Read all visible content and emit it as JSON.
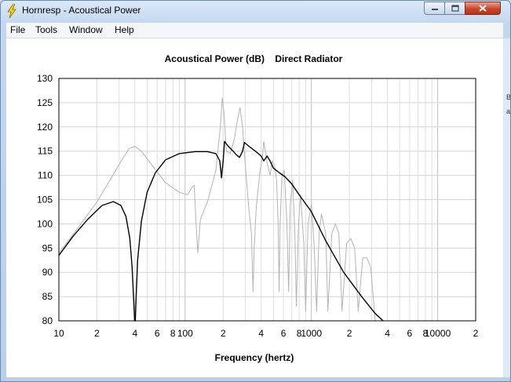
{
  "window": {
    "title": "Hornresp - Acoustical Power"
  },
  "menu": [
    "File",
    "Tools",
    "Window",
    "Help"
  ],
  "chart_data": {
    "type": "line",
    "title": "Acoustical Power (dB)    Direct Radiator",
    "xlabel": "Frequency (hertz)",
    "ylabel": "",
    "x_scale": "log",
    "xlim": [
      10,
      20000
    ],
    "ylim": [
      80,
      130
    ],
    "y_ticks": [
      80,
      85,
      90,
      95,
      100,
      105,
      110,
      115,
      120,
      125,
      130
    ],
    "y_tick_labels": [
      "80",
      "85",
      "90",
      "95",
      "100",
      "105",
      "110",
      "115",
      "120",
      "125",
      "130"
    ],
    "x_ticks": [
      10,
      20,
      40,
      60,
      80,
      100,
      200,
      400,
      600,
      800,
      1000,
      2000,
      4000,
      6000,
      8000,
      10000,
      20000
    ],
    "x_tick_labels": [
      "10",
      "2",
      "4",
      "6",
      "8",
      "100",
      "2",
      "4",
      "6",
      "8",
      "1000",
      "2",
      "4",
      "6",
      "8",
      "10000",
      "2"
    ],
    "grid": true,
    "series": [
      {
        "color": "#000000",
        "points": [
          [
            10,
            93.5
          ],
          [
            13,
            97.5
          ],
          [
            17,
            101
          ],
          [
            22,
            103.8
          ],
          [
            27,
            104.6
          ],
          [
            31,
            103.8
          ],
          [
            34,
            101.5
          ],
          [
            36.5,
            97
          ],
          [
            38,
            91
          ],
          [
            39.2,
            84
          ],
          [
            39.8,
            80
          ],
          [
            40.3,
            80
          ],
          [
            40.8,
            84
          ],
          [
            42,
            92.5
          ],
          [
            45,
            100.5
          ],
          [
            50,
            106.5
          ],
          [
            58,
            110.5
          ],
          [
            70,
            113.2
          ],
          [
            90,
            114.5
          ],
          [
            120,
            114.9
          ],
          [
            150,
            114.9
          ],
          [
            175,
            114.5
          ],
          [
            188,
            113
          ],
          [
            194,
            109.5
          ],
          [
            200,
            113
          ],
          [
            205,
            117
          ],
          [
            220,
            116
          ],
          [
            240,
            115
          ],
          [
            255,
            114.2
          ],
          [
            270,
            113.7
          ],
          [
            285,
            115
          ],
          [
            295,
            116.8
          ],
          [
            320,
            116
          ],
          [
            360,
            115
          ],
          [
            400,
            114
          ],
          [
            420,
            113
          ],
          [
            445,
            114
          ],
          [
            470,
            113
          ],
          [
            500,
            111.5
          ],
          [
            560,
            110.5
          ],
          [
            620,
            109.7
          ],
          [
            700,
            108.2
          ],
          [
            800,
            106
          ],
          [
            1000,
            102.5
          ],
          [
            1300,
            96.5
          ],
          [
            1800,
            90
          ],
          [
            2500,
            85
          ],
          [
            3200,
            81.5
          ],
          [
            3700,
            80
          ]
        ]
      },
      {
        "color": "#b4b4b4",
        "points": [
          [
            10,
            94
          ],
          [
            14,
            99
          ],
          [
            20,
            104.5
          ],
          [
            26,
            109.5
          ],
          [
            32,
            113.5
          ],
          [
            36,
            115.5
          ],
          [
            40,
            116
          ],
          [
            45,
            115
          ],
          [
            55,
            112
          ],
          [
            70,
            108.5
          ],
          [
            90,
            106.5
          ],
          [
            105,
            106
          ],
          [
            113,
            107.5
          ],
          [
            118,
            108
          ],
          [
            122,
            100
          ],
          [
            126,
            94
          ],
          [
            132,
            101
          ],
          [
            150,
            104.5
          ],
          [
            175,
            111
          ],
          [
            190,
            120
          ],
          [
            197,
            126
          ],
          [
            203,
            123
          ],
          [
            212,
            115
          ],
          [
            228,
            114.5
          ],
          [
            245,
            117.5
          ],
          [
            260,
            121.5
          ],
          [
            272,
            124
          ],
          [
            285,
            120
          ],
          [
            300,
            112
          ],
          [
            320,
            103
          ],
          [
            335,
            98
          ],
          [
            345,
            86
          ],
          [
            352,
            95
          ],
          [
            365,
            103
          ],
          [
            390,
            110.5
          ],
          [
            410,
            114
          ],
          [
            420,
            117
          ],
          [
            432,
            115
          ],
          [
            447,
            112.5
          ],
          [
            470,
            110
          ],
          [
            490,
            113
          ],
          [
            510,
            112
          ],
          [
            530,
            109
          ],
          [
            545,
            100
          ],
          [
            555,
            86
          ],
          [
            565,
            100
          ],
          [
            585,
            110
          ],
          [
            610,
            111
          ],
          [
            640,
            100
          ],
          [
            660,
            86
          ],
          [
            680,
            104
          ],
          [
            710,
            109
          ],
          [
            740,
            98
          ],
          [
            760,
            83
          ],
          [
            790,
            100
          ],
          [
            820,
            106
          ],
          [
            870,
            96
          ],
          [
            900,
            82
          ],
          [
            940,
            100
          ],
          [
            1000,
            104
          ],
          [
            1050,
            96
          ],
          [
            1100,
            82
          ],
          [
            1150,
            98
          ],
          [
            1200,
            102
          ],
          [
            1300,
            98
          ],
          [
            1350,
            82
          ],
          [
            1450,
            98
          ],
          [
            1550,
            100
          ],
          [
            1650,
            98
          ],
          [
            1750,
            82
          ],
          [
            1900,
            96
          ],
          [
            2050,
            97
          ],
          [
            2200,
            95
          ],
          [
            2350,
            82
          ],
          [
            2550,
            93
          ],
          [
            2750,
            93
          ],
          [
            2950,
            91
          ],
          [
            3200,
            80
          ]
        ]
      }
    ]
  }
}
